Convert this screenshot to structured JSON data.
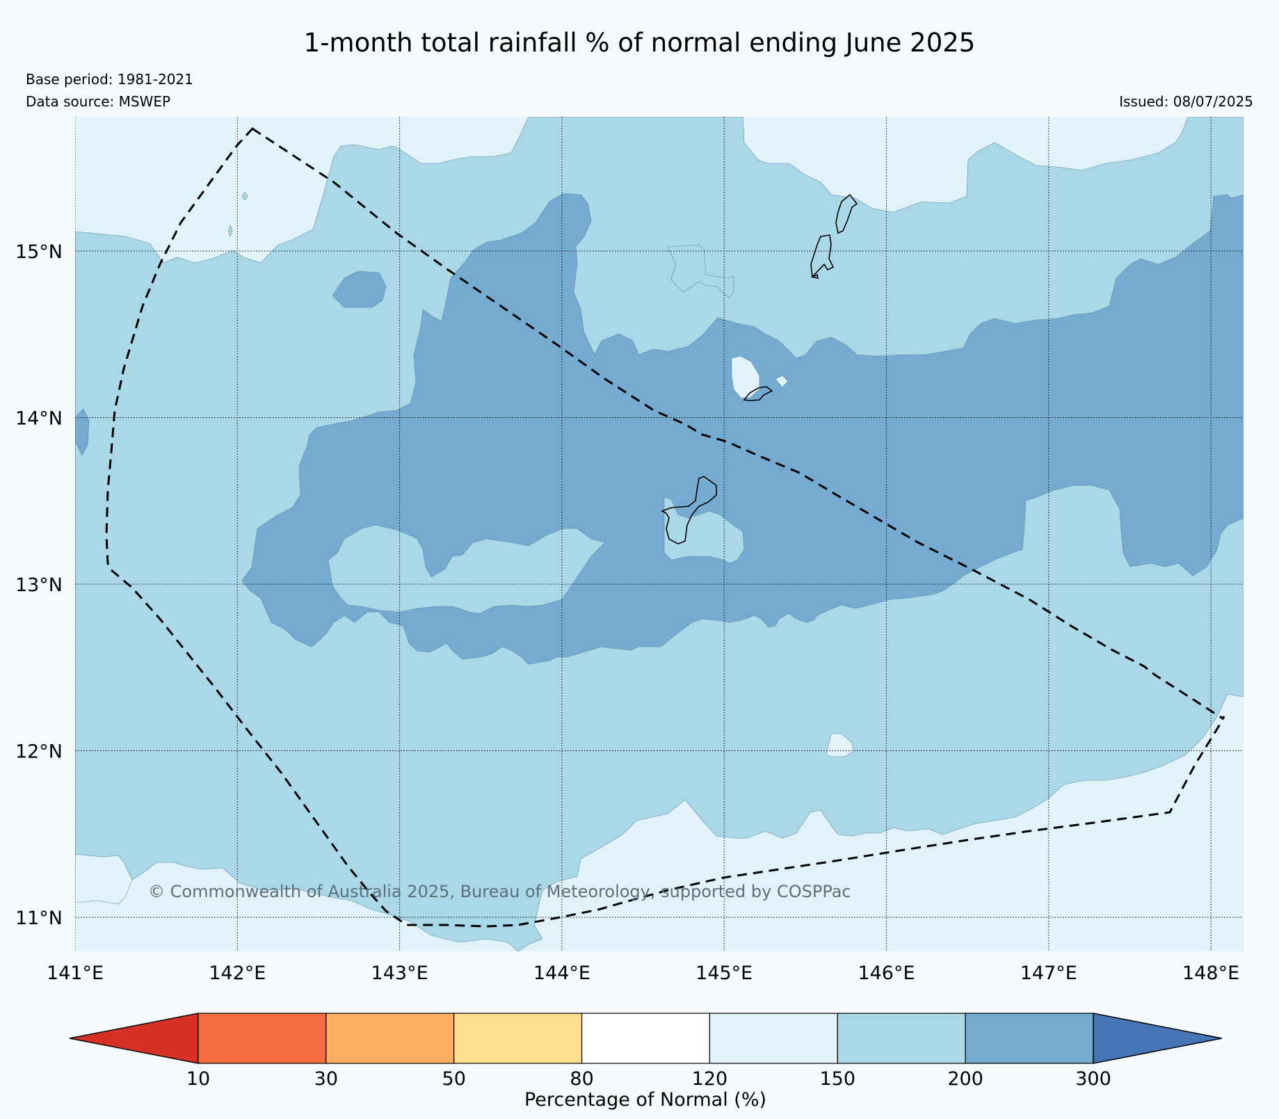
{
  "title": "1-month total rainfall % of normal ending June 2025",
  "base_period": "Base period: 1981-2021",
  "data_source": "Data source: MSWEP",
  "issued": "Issued: 08/07/2025",
  "copyright": "© Commonwealth of Australia 2025, Bureau of Meteorology, supported by COSPPac",
  "map": {
    "lon_range": [
      141,
      148.2
    ],
    "lat_range": [
      10.8,
      15.8
    ],
    "lon_ticks": [
      {
        "value": 141,
        "label": "141°E"
      },
      {
        "value": 142,
        "label": "142°E"
      },
      {
        "value": 143,
        "label": "143°E"
      },
      {
        "value": 144,
        "label": "144°E"
      },
      {
        "value": 145,
        "label": "145°E"
      },
      {
        "value": 146,
        "label": "146°E"
      },
      {
        "value": 147,
        "label": "147°E"
      },
      {
        "value": 148,
        "label": "148°E"
      }
    ],
    "lat_ticks": [
      {
        "value": 15,
        "label": "15°N"
      },
      {
        "value": 14,
        "label": "14°N"
      },
      {
        "value": 13,
        "label": "13°N"
      },
      {
        "value": 12,
        "label": "12°N"
      },
      {
        "value": 11,
        "label": "11°N"
      }
    ],
    "gridlines": true,
    "region_colors": {
      "120-150": "#e1f3f8",
      "150-200": "#abd8e7",
      "200-300": "#75abd0"
    }
  },
  "colorbar": {
    "label": "Percentage of Normal (%)",
    "ticks": [
      "10",
      "30",
      "50",
      "80",
      "120",
      "150",
      "200",
      "300"
    ],
    "under_color": "#d73027",
    "over_color": "#4575b4",
    "colors": [
      "#f46d43",
      "#fdae61",
      "#fee090",
      "#ffffff",
      "#e1f3f8",
      "#abd8e7",
      "#75abd0"
    ]
  }
}
